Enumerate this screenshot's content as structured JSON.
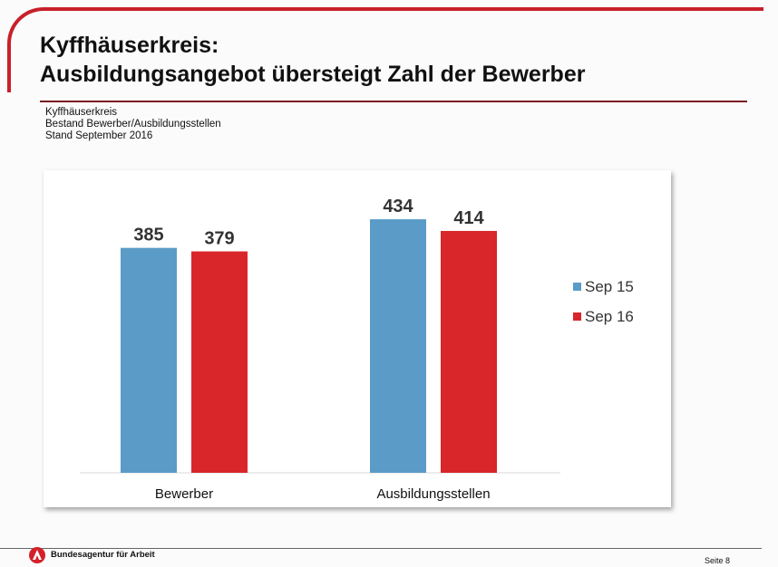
{
  "slide": {
    "title_line1": "Kyffhäuserkreis:",
    "title_line2": "Ausbildungsangebot übersteigt Zahl der Bewerber",
    "subtitle": [
      "Kyffhäuserkreis",
      "Bestand Bewerber/Ausbildungsstellen",
      "Stand September 2016"
    ],
    "footer_org": "Bundesagentur für Arbeit",
    "page_label": "Seite 8",
    "accent_color": "#c8202a"
  },
  "chart_data": {
    "type": "bar",
    "categories": [
      "Bewerber",
      "Ausbildungsstellen"
    ],
    "series": [
      {
        "name": "Sep 15",
        "values": [
          385,
          434
        ],
        "color": "#5b9bc8"
      },
      {
        "name": "Sep 16",
        "values": [
          379,
          414
        ],
        "color": "#d8262a"
      }
    ],
    "data_labels": true,
    "legend_position": "right",
    "grid": false
  }
}
